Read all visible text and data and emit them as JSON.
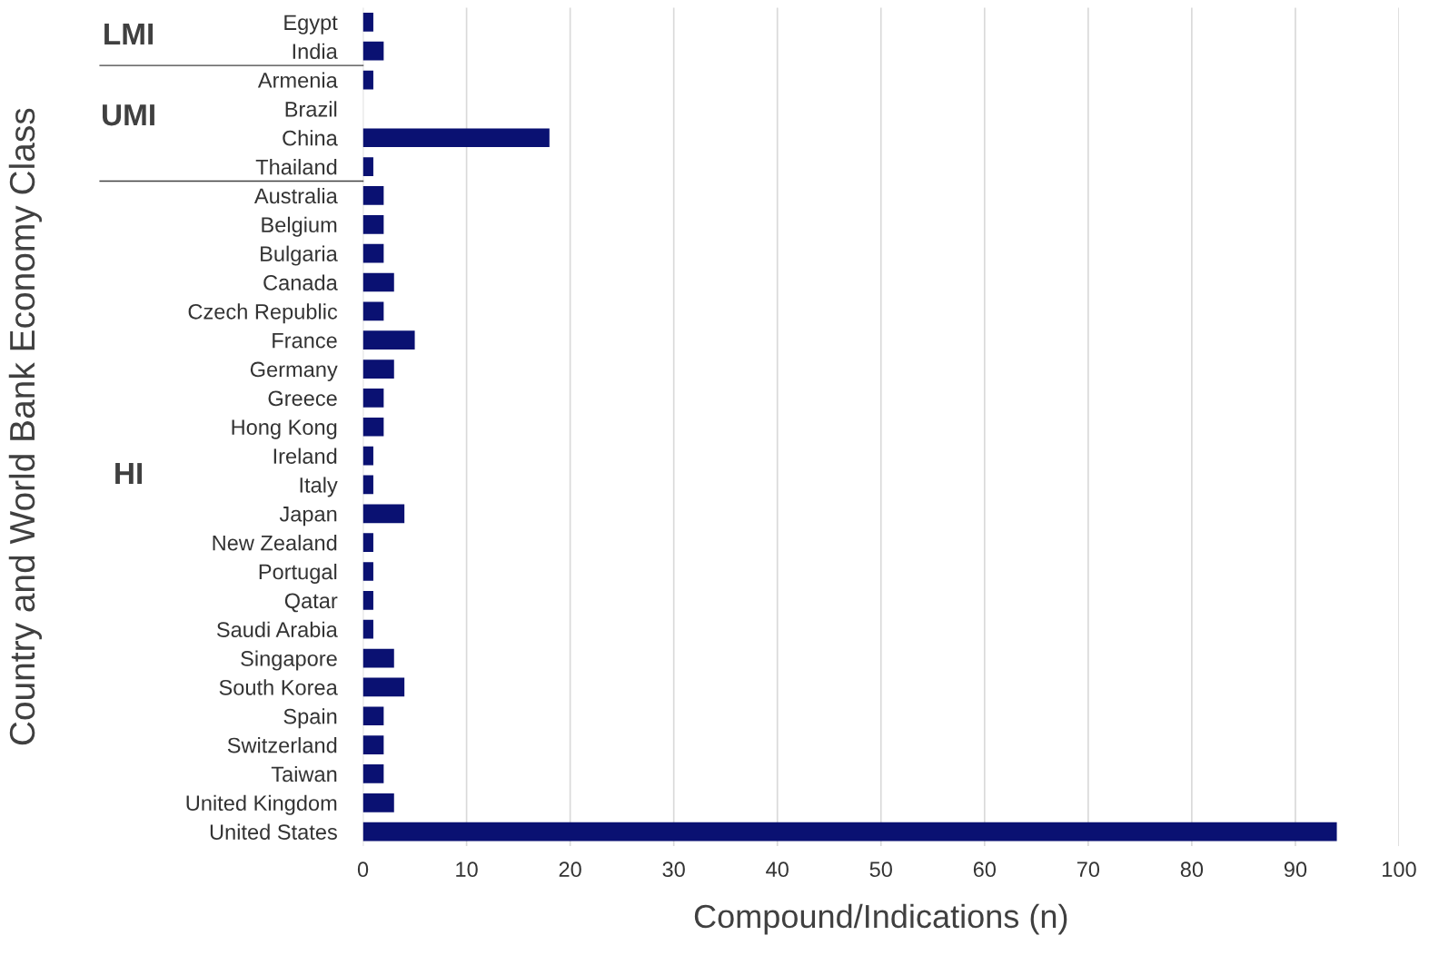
{
  "chart_data": {
    "type": "bar",
    "orientation": "horizontal",
    "xlabel": "Compound/Indications (n)",
    "ylabel": "Country and World Bank Economy Class",
    "categories": [
      "Egypt",
      "India",
      "Armenia",
      "Brazil",
      "China",
      "Thailand",
      "Australia",
      "Belgium",
      "Bulgaria",
      "Canada",
      "Czech Republic",
      "France",
      "Germany",
      "Greece",
      "Hong Kong",
      "Ireland",
      "Italy",
      "Japan",
      "New Zealand",
      "Portugal",
      "Qatar",
      "Saudi Arabia",
      "Singapore",
      "South Korea",
      "Spain",
      "Switzerland",
      "Taiwan",
      "United Kingdom",
      "United States"
    ],
    "values": [
      1,
      2,
      1,
      0,
      18,
      1,
      2,
      2,
      2,
      3,
      2,
      5,
      3,
      2,
      2,
      1,
      1,
      4,
      1,
      1,
      1,
      1,
      3,
      4,
      2,
      2,
      2,
      3,
      94
    ],
    "color": "#0a1172",
    "xlim": [
      0,
      100
    ],
    "xticks": [
      0,
      10,
      20,
      30,
      40,
      50,
      60,
      70,
      80,
      90,
      100
    ],
    "grid": "x",
    "annotations": [
      "LMI",
      "UMI",
      "HI"
    ]
  }
}
